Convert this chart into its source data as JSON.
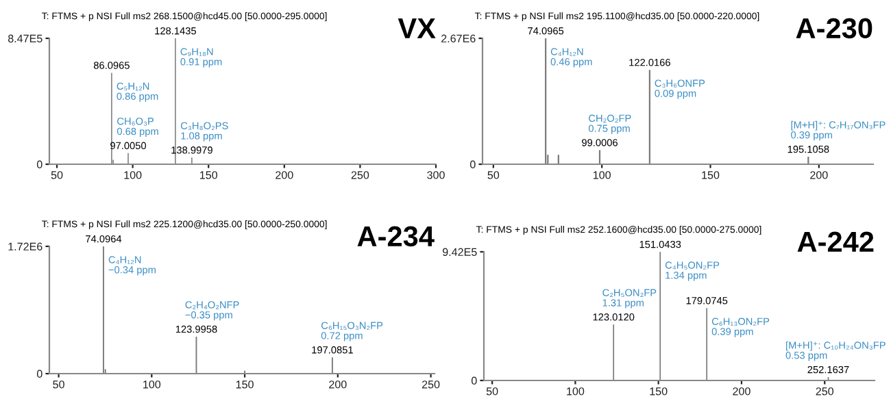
{
  "chart_data": [
    {
      "type": "bar",
      "title": "VX",
      "subtitle": "T: FTMS + p NSI Full ms2 268.1500@hcd45.00 [50.0000-295.0000]",
      "color": "#7a7a7a",
      "x": [
        86.0965,
        87.1,
        97.005,
        128.1435,
        138.9979
      ],
      "values": [
        615000,
        30000,
        75000,
        847000,
        45000
      ],
      "xlim": [
        45,
        300
      ],
      "xticks": [
        50,
        100,
        150,
        200,
        250,
        300
      ],
      "ylim": [
        0,
        847000
      ],
      "yticks": [
        0,
        {
          "value": 847000,
          "label": "8.47E5"
        }
      ],
      "grid": false,
      "annotations": [
        {
          "text": "86.0965",
          "x": 86.0965,
          "y": 615000
        },
        {
          "text": "128.1435",
          "x": 128.1435,
          "y": 847000
        },
        {
          "text": "97.0050",
          "x": 97.005,
          "y": 75000
        },
        {
          "text": "138.9979",
          "x": 138.9979,
          "y": 45000
        },
        {
          "text": "C₉H₁₈N\n0.91 ppm",
          "x": 128.1435,
          "y": 847000
        },
        {
          "text": "C₅H₁₂N\n0.86 ppm",
          "x": 86.0965,
          "y": 615000
        },
        {
          "text": "CH₆O₃P\n0.68 ppm",
          "x": 97.005,
          "y": 75000
        },
        {
          "text": "C₃H₈O₂PS\n1.08 ppm",
          "x": 138.9979,
          "y": 45000
        }
      ]
    },
    {
      "type": "bar",
      "title": "A-230",
      "subtitle": "T: FTMS + p NSI Full ms2 195.1100@hcd35.00 [50.0000-220.0000]",
      "color": "#7a7a7a",
      "x": [
        74.0965,
        75.1,
        80.0,
        99.0006,
        122.0166,
        195.1058
      ],
      "values": [
        2670000,
        200000,
        200000,
        300000,
        2000000,
        160000
      ],
      "xlim": [
        45,
        225
      ],
      "xticks": [
        50,
        100,
        150,
        200
      ],
      "ylim": [
        0,
        2670000
      ],
      "yticks": [
        0,
        {
          "value": 2670000,
          "label": "2.67E6"
        }
      ],
      "grid": false,
      "annotations": [
        {
          "text": "74.0965",
          "x": 74.0965,
          "y": 2670000
        },
        {
          "text": "122.0166",
          "x": 122.0166,
          "y": 2000000
        },
        {
          "text": "99.0006",
          "x": 99.0006,
          "y": 300000
        },
        {
          "text": "195.1058",
          "x": 195.1058,
          "y": 160000
        },
        {
          "text": "C₄H₁₂N\n0.46 ppm",
          "x": 74.0965,
          "y": 2670000
        },
        {
          "text": "C₃H₆ONFP\n0.09 ppm",
          "x": 122.0166,
          "y": 2000000
        },
        {
          "text": "CH₂O₂FP\n0.75 ppm",
          "x": 99.0006,
          "y": 300000
        },
        {
          "text": "[M+H]⁺: C₇H₁₇ON₃FP\n0.39 ppm",
          "x": 195.1058,
          "y": 160000
        }
      ]
    },
    {
      "type": "bar",
      "title": "A-234",
      "subtitle": "T: FTMS + p NSI Full ms2 225.1200@hcd35.00 [50.0000-250.0000]",
      "color": "#7a7a7a",
      "x": [
        74.0964,
        75.1,
        123.9958,
        150.0,
        197.0851
      ],
      "values": [
        1720000,
        60000,
        500000,
        40000,
        220000
      ],
      "xlim": [
        45,
        252
      ],
      "xticks": [
        50,
        100,
        150,
        200,
        250
      ],
      "ylim": [
        0,
        1720000
      ],
      "yticks": [
        0,
        {
          "value": 1720000,
          "label": "1.72E6"
        }
      ],
      "grid": false,
      "annotations": [
        {
          "text": "74.0964",
          "x": 74.0964,
          "y": 1720000
        },
        {
          "text": "123.9958",
          "x": 123.9958,
          "y": 500000
        },
        {
          "text": "197.0851",
          "x": 197.0851,
          "y": 220000
        },
        {
          "text": "C₄H₁₂N\n−0.34 ppm",
          "x": 74.0964,
          "y": 1720000
        },
        {
          "text": "C₂H₄O₂NFP\n−0.35 ppm",
          "x": 123.9958,
          "y": 500000
        },
        {
          "text": "C₆H₁₅O₃N₂FP\n0.72 ppm",
          "x": 197.0851,
          "y": 220000
        }
      ]
    },
    {
      "type": "bar",
      "title": "A-242",
      "subtitle": "T: FTMS + p NSI Full ms2 252.1600@hcd35.00 [50.0000-275.0000]",
      "color": "#7a7a7a",
      "x": [
        123.012,
        151.0433,
        179.0745,
        252.1637
      ],
      "values": [
        410000,
        942000,
        530000,
        25000
      ],
      "xlim": [
        45,
        280
      ],
      "xticks": [
        50,
        100,
        150,
        200,
        250
      ],
      "ylim": [
        0,
        942000
      ],
      "yticks": [
        0,
        {
          "value": 942000,
          "label": "9.42E5"
        }
      ],
      "grid": false,
      "annotations": [
        {
          "text": "151.0433",
          "x": 151.0433,
          "y": 942000
        },
        {
          "text": "123.0120",
          "x": 123.012,
          "y": 410000
        },
        {
          "text": "179.0745",
          "x": 179.0745,
          "y": 530000
        },
        {
          "text": "252.1637",
          "x": 252.1637,
          "y": 25000
        },
        {
          "text": "C₄H₅ON₂FP\n1.34 ppm",
          "x": 151.0433,
          "y": 942000
        },
        {
          "text": "C₂H₅ON₂FP\n1.31 ppm",
          "x": 123.012,
          "y": 410000
        },
        {
          "text": "C₆H₁₃ON₂FP\n0.39 ppm",
          "x": 179.0745,
          "y": 530000
        },
        {
          "text": "[M+H]⁺: C₁₀H₂₄ON₃FP\n0.53 ppm",
          "x": 252.1637,
          "y": 25000
        }
      ]
    }
  ]
}
